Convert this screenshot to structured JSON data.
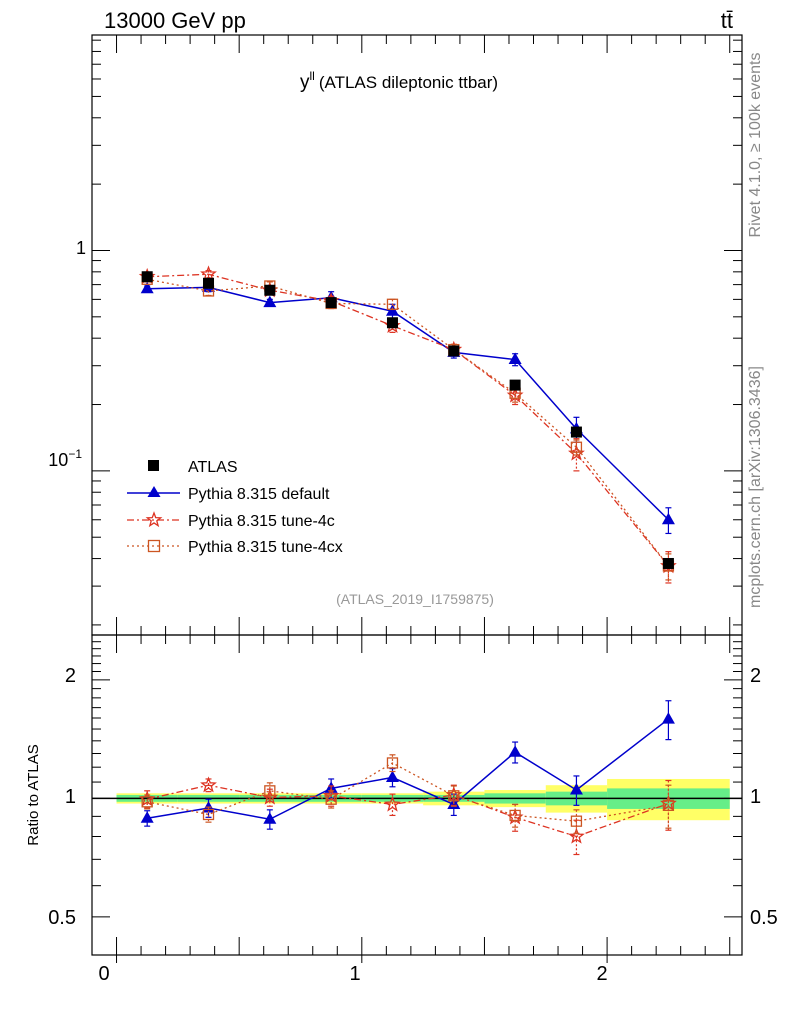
{
  "header": {
    "left": "13000 GeV pp",
    "right": "tt̄"
  },
  "side_labels": {
    "rivet": "Rivet 4.1.0, ≥ 100k events",
    "mcplots": "mcplots.cern.ch [arXiv:1306.3436]"
  },
  "colors": {
    "atlas": "#000000",
    "default": "#0000cc",
    "tune4c": "#dd3322",
    "tune4cx": "#cc5522",
    "band_inner": "#66ee88",
    "band_outer": "#ffff66"
  },
  "chart_data": [
    {
      "type": "line",
      "title": "y",
      "title_sup": "ll",
      "subtitle": "(ATLAS dileptonic ttbar)",
      "analysis_label": "(ATLAS_2019_I1759875)",
      "yscale": "log",
      "xlim": [
        -0.1,
        2.55
      ],
      "ylim": [
        0.018,
        9.5
      ],
      "ytick_labels": [
        {
          "value": 1,
          "label": "1"
        },
        {
          "value": 0.1,
          "label": "10",
          "sup": "−1"
        }
      ],
      "legend": [
        "ATLAS",
        "Pythia 8.315 default",
        "Pythia 8.315 tune-4c",
        "Pythia 8.315 tune-4cx"
      ],
      "legend_position": "lower-left",
      "x": [
        0.125,
        0.375,
        0.625,
        0.875,
        1.125,
        1.375,
        1.625,
        1.875,
        2.25
      ],
      "xerr": [
        0.125,
        0.125,
        0.125,
        0.125,
        0.125,
        0.125,
        0.125,
        0.125,
        0.25
      ],
      "series": [
        {
          "name": "ATLAS",
          "marker": "square",
          "values": [
            0.76,
            0.71,
            0.66,
            0.58,
            0.47,
            0.35,
            0.245,
            0.15,
            0.038
          ]
        },
        {
          "name": "Pythia 8.315 default",
          "marker": "triangle",
          "values": [
            0.67,
            0.68,
            0.58,
            0.61,
            0.53,
            0.345,
            0.32,
            0.155,
            0.06
          ],
          "errors": [
            0.02,
            0.03,
            0.02,
            0.04,
            0.04,
            0.02,
            0.02,
            0.02,
            0.008
          ]
        },
        {
          "name": "Pythia 8.315 tune-4c",
          "marker": "star",
          "values": [
            0.76,
            0.78,
            0.66,
            0.59,
            0.455,
            0.355,
            0.22,
            0.12,
            0.037
          ],
          "errors": [
            0.03,
            0.03,
            0.03,
            0.03,
            0.03,
            0.02,
            0.02,
            0.02,
            0.006
          ]
        },
        {
          "name": "Pythia 8.315 tune-4cx",
          "marker": "open-square",
          "values": [
            0.74,
            0.655,
            0.69,
            0.575,
            0.57,
            0.355,
            0.225,
            0.128,
            0.037
          ],
          "errors": [
            0.02,
            0.03,
            0.03,
            0.03,
            0.03,
            0.02,
            0.02,
            0.01,
            0.005
          ]
        }
      ]
    },
    {
      "type": "line",
      "ylabel": "Ratio to ATLAS",
      "yscale": "log",
      "xlim": [
        -0.1,
        2.55
      ],
      "ylim": [
        0.4,
        2.6
      ],
      "xtick_labels": [
        {
          "value": 0,
          "label": "0"
        },
        {
          "value": 1,
          "label": "1"
        },
        {
          "value": 2,
          "label": "2"
        }
      ],
      "ytick_labels": [
        {
          "value": 0.5,
          "label": "0.5"
        },
        {
          "value": 1,
          "label": "1"
        },
        {
          "value": 2,
          "label": "2"
        }
      ],
      "x": [
        0.125,
        0.375,
        0.625,
        0.875,
        1.125,
        1.375,
        1.625,
        1.875,
        2.25
      ],
      "band_edges": [
        0,
        0.25,
        0.5,
        0.75,
        1.0,
        1.25,
        1.5,
        1.75,
        2.0,
        2.5
      ],
      "band_inner": [
        0.02,
        0.02,
        0.02,
        0.02,
        0.02,
        0.02,
        0.03,
        0.04,
        0.06
      ],
      "band_outer": [
        0.03,
        0.03,
        0.03,
        0.03,
        0.03,
        0.04,
        0.05,
        0.08,
        0.12
      ],
      "series": [
        {
          "name": "Pythia 8.315 default",
          "marker": "triangle",
          "values": [
            0.89,
            0.945,
            0.885,
            1.06,
            1.13,
            0.965,
            1.31,
            1.05,
            1.59
          ],
          "errors": [
            0.04,
            0.05,
            0.05,
            0.06,
            0.06,
            0.06,
            0.08,
            0.09,
            0.18
          ]
        },
        {
          "name": "Pythia 8.315 tune-4c",
          "marker": "star",
          "values": [
            0.995,
            1.08,
            1.005,
            1.015,
            0.965,
            1.02,
            0.895,
            0.8,
            0.97
          ],
          "errors": [
            0.05,
            0.04,
            0.05,
            0.06,
            0.06,
            0.06,
            0.07,
            0.08,
            0.14
          ]
        },
        {
          "name": "Pythia 8.315 tune-4cx",
          "marker": "open-square",
          "values": [
            0.98,
            0.91,
            1.045,
            0.995,
            1.23,
            1.015,
            0.905,
            0.875,
            0.96
          ],
          "errors": [
            0.04,
            0.04,
            0.05,
            0.05,
            0.06,
            0.06,
            0.06,
            0.06,
            0.12
          ]
        }
      ]
    }
  ]
}
